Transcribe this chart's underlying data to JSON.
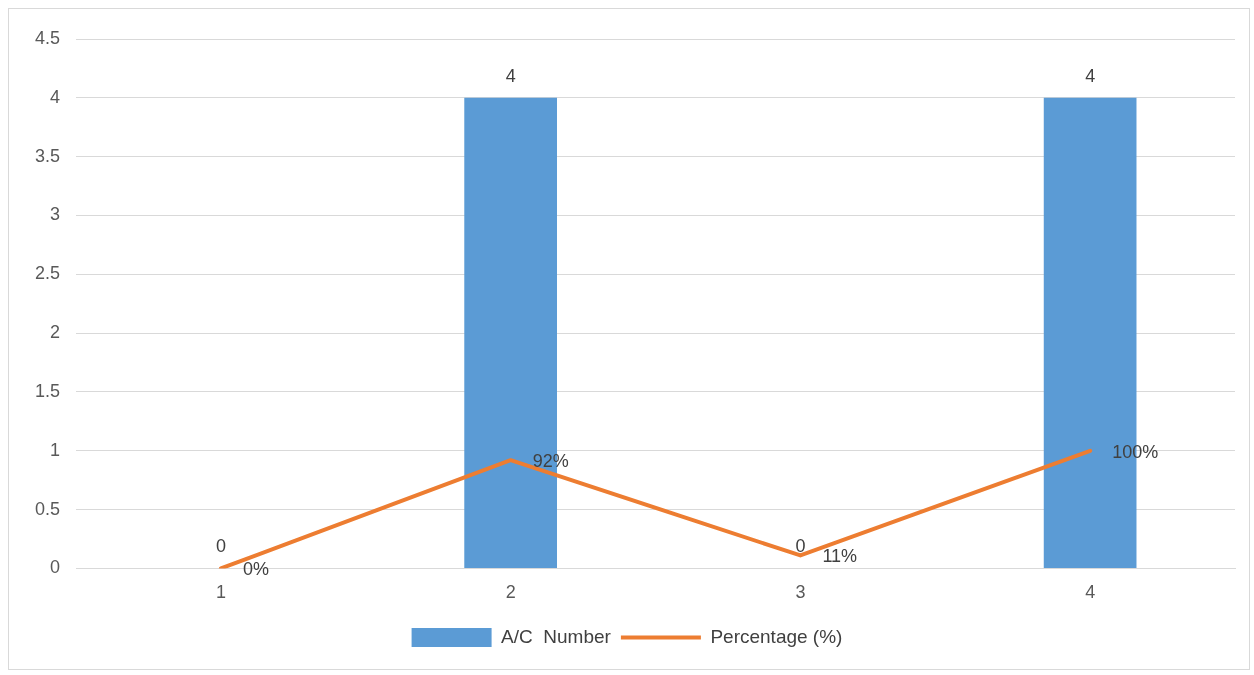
{
  "chart_data": {
    "type": "bar",
    "categories": [
      "1",
      "2",
      "3",
      "4"
    ],
    "series": [
      {
        "name": "A/C  Number",
        "color": "#5b9bd5",
        "values": [
          0,
          4,
          0,
          4
        ],
        "data_labels": true
      },
      {
        "name": "Percentage (%)",
        "type": "line",
        "color": "#ed7d31",
        "values": [
          0,
          0.92,
          0.11,
          1
        ],
        "value_labels": [
          "0%",
          "92%",
          "11%",
          "100%"
        ],
        "marker": "none",
        "line_style": "solid"
      }
    ],
    "ylim": [
      0,
      4.5
    ],
    "yticks": [
      0,
      0.5,
      1,
      1.5,
      2,
      2.5,
      3,
      3.5,
      4,
      4.5
    ],
    "grid": "y",
    "legend": "bottom"
  }
}
